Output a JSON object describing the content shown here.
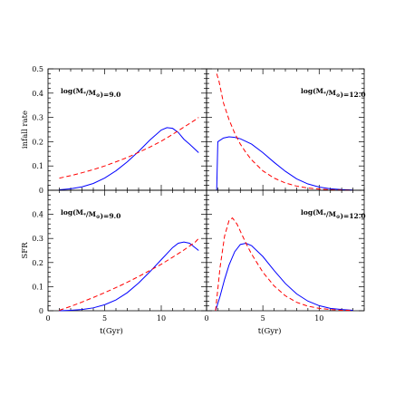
{
  "chart_data": [
    {
      "type": "line",
      "position": "top-left",
      "annotation_prefix": "log(M",
      "annotation_sub1": "*",
      "annotation_mid": "/M",
      "annotation_sub2": "⊙",
      "annotation_suffix": ")=9.0",
      "ylabel": "infall rate",
      "xlim": [
        0,
        14
      ],
      "ylim": [
        0,
        0.5
      ],
      "y_ticks": [
        "0",
        "0.1",
        "0.2",
        "0.3",
        "0.4",
        "0.5"
      ],
      "series": [
        {
          "style": "solid",
          "color": "#0000ff",
          "x": [
            1,
            2,
            3,
            4,
            5,
            6,
            7,
            8,
            9,
            10,
            10.5,
            11,
            11.5,
            12,
            12.5,
            13.3
          ],
          "y": [
            0.002,
            0.006,
            0.014,
            0.028,
            0.05,
            0.08,
            0.117,
            0.16,
            0.207,
            0.248,
            0.258,
            0.255,
            0.238,
            0.21,
            0.19,
            0.155
          ]
        },
        {
          "style": "dashed",
          "color": "#ff0000",
          "x": [
            1,
            2,
            3,
            4,
            5,
            6,
            7,
            8,
            9,
            10,
            11,
            12,
            13,
            13.3
          ],
          "y": [
            0.05,
            0.06,
            0.072,
            0.085,
            0.1,
            0.117,
            0.135,
            0.156,
            0.178,
            0.202,
            0.23,
            0.26,
            0.29,
            0.3
          ]
        }
      ]
    },
    {
      "type": "line",
      "position": "top-right",
      "annotation_prefix": "log(M",
      "annotation_sub1": "*",
      "annotation_mid": "/M",
      "annotation_sub2": "⊙",
      "annotation_suffix": ")=12.0",
      "xlim": [
        0,
        14
      ],
      "ylim": [
        0,
        0.5
      ],
      "series": [
        {
          "style": "solid",
          "color": "#0000ff",
          "x": [
            0.9,
            1,
            1.5,
            2,
            2.5,
            3,
            4,
            5,
            6,
            7,
            8,
            9,
            10,
            11,
            12,
            13
          ],
          "y": [
            0,
            0.2,
            0.215,
            0.22,
            0.218,
            0.212,
            0.19,
            0.155,
            0.115,
            0.078,
            0.047,
            0.026,
            0.013,
            0.006,
            0.003,
            0.001
          ]
        },
        {
          "style": "dashed",
          "color": "#ff0000",
          "x": [
            0.9,
            1.1,
            1.5,
            2,
            2.5,
            3,
            3.5,
            4,
            5,
            6,
            7,
            8,
            9,
            10,
            11,
            12,
            13
          ],
          "y": [
            0.48,
            0.45,
            0.36,
            0.29,
            0.235,
            0.19,
            0.155,
            0.125,
            0.08,
            0.05,
            0.03,
            0.017,
            0.009,
            0.005,
            0.002,
            0.001,
            0
          ]
        }
      ]
    },
    {
      "type": "line",
      "position": "bottom-left",
      "annotation_prefix": "log(M",
      "annotation_sub1": "*",
      "annotation_mid": "/M",
      "annotation_sub2": "⊙",
      "annotation_suffix": ")=9.0",
      "xlabel": "t(Gyr)",
      "ylabel": "SFR",
      "xlim": [
        0,
        14
      ],
      "ylim": [
        0,
        0.5
      ],
      "x_ticks": [
        "0",
        "5",
        "10"
      ],
      "y_ticks": [
        "0",
        "0.1",
        "0.2",
        "0.3",
        "0.4"
      ],
      "series": [
        {
          "style": "solid",
          "color": "#0000ff",
          "x": [
            1,
            2,
            3,
            4,
            5,
            6,
            7,
            8,
            9,
            10,
            11,
            11.5,
            12,
            12.5,
            13.3
          ],
          "y": [
            0,
            0.002,
            0.005,
            0.012,
            0.025,
            0.045,
            0.075,
            0.115,
            0.162,
            0.212,
            0.262,
            0.28,
            0.285,
            0.28,
            0.25
          ]
        },
        {
          "style": "dashed",
          "color": "#ff0000",
          "x": [
            1,
            2,
            3,
            4,
            5,
            6,
            7,
            8,
            9,
            10,
            11,
            12,
            13,
            13.3
          ],
          "y": [
            0.002,
            0.018,
            0.036,
            0.055,
            0.075,
            0.096,
            0.118,
            0.142,
            0.167,
            0.193,
            0.222,
            0.252,
            0.285,
            0.3
          ]
        }
      ]
    },
    {
      "type": "line",
      "position": "bottom-right",
      "annotation_prefix": "log(M",
      "annotation_sub1": "*",
      "annotation_mid": "/M",
      "annotation_sub2": "⊙",
      "annotation_suffix": ")=12.0",
      "xlabel": "t(Gyr)",
      "xlim": [
        0,
        14
      ],
      "ylim": [
        0,
        0.5
      ],
      "x_ticks": [
        "0",
        "5",
        "10"
      ],
      "series": [
        {
          "style": "solid",
          "color": "#0000ff",
          "x": [
            0.8,
            1.2,
            1.6,
            2,
            2.5,
            3,
            3.5,
            4,
            5,
            6,
            7,
            8,
            9,
            10,
            11,
            12,
            13
          ],
          "y": [
            0,
            0.06,
            0.13,
            0.19,
            0.245,
            0.275,
            0.28,
            0.27,
            0.225,
            0.167,
            0.113,
            0.07,
            0.04,
            0.021,
            0.01,
            0.005,
            0.002
          ]
        },
        {
          "style": "dashed",
          "color": "#ff0000",
          "x": [
            0.8,
            1.2,
            1.6,
            2,
            2.3,
            2.7,
            3,
            3.5,
            4,
            5,
            6,
            7,
            8,
            9,
            10,
            11,
            12,
            13
          ],
          "y": [
            0,
            0.18,
            0.31,
            0.375,
            0.385,
            0.36,
            0.33,
            0.28,
            0.235,
            0.16,
            0.103,
            0.062,
            0.035,
            0.019,
            0.01,
            0.005,
            0.002,
            0.001
          ]
        }
      ]
    }
  ]
}
